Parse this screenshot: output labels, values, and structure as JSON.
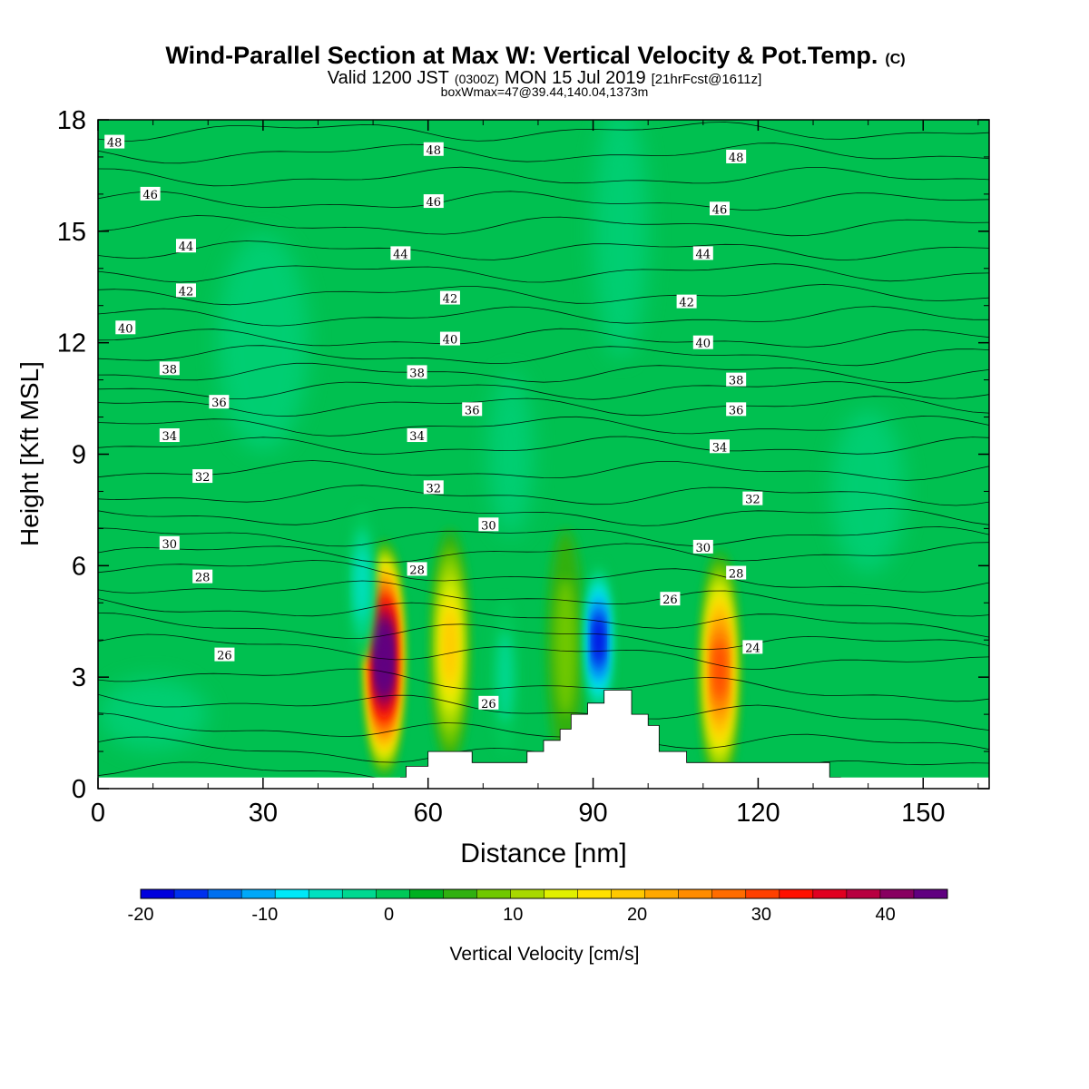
{
  "chart_data": {
    "type": "heatmap",
    "title": "Wind-Parallel Section at Max W: Vertical Velocity & Pot.Temp.",
    "title_mark": "(C)",
    "subtitle_parts": {
      "valid": "Valid 1200 JST",
      "utc": "(0300Z)",
      "date": "MON 15 Jul 2019",
      "fcst": "[21hrFcst@1611z]"
    },
    "subtitle2": "boxWmax=47@39.44,140.04,1373m",
    "xlabel": "Distance [nm]",
    "ylabel": "Height [Kft MSL]",
    "xlim": [
      0,
      162
    ],
    "ylim": [
      0,
      18
    ],
    "xticks": [
      0,
      30,
      60,
      90,
      120,
      150
    ],
    "yticks": [
      0,
      3,
      6,
      9,
      12,
      15,
      18
    ],
    "colorbar": {
      "label": "Vertical Velocity [cm/s]",
      "ticks": [
        -20,
        -10,
        0,
        10,
        20,
        30,
        40
      ],
      "range": [
        -20,
        45
      ],
      "step": 2.5,
      "colors": [
        "#0000dd",
        "#0030ee",
        "#0070f0",
        "#00a8f8",
        "#00e8f8",
        "#00e0c0",
        "#00d890",
        "#00c858",
        "#00b020",
        "#30b010",
        "#70c800",
        "#a8d800",
        "#e0f000",
        "#ffe000",
        "#ffc800",
        "#ffa800",
        "#ff8c00",
        "#ff6c00",
        "#ff4000",
        "#ff1000",
        "#e00020",
        "#b80040",
        "#880060",
        "#600080"
      ]
    },
    "theta_contours": [
      {
        "value": 24,
        "height": 3.8
      },
      {
        "value": 26,
        "height": 4.8
      },
      {
        "value": 28,
        "height": 5.9
      },
      {
        "value": 30,
        "height": 6.8
      },
      {
        "value": 32,
        "height": 7.9
      },
      {
        "value": 34,
        "height": 9.2
      },
      {
        "value": 36,
        "height": 10.3
      },
      {
        "value": 38,
        "height": 11.2
      },
      {
        "value": 40,
        "height": 12.1
      },
      {
        "value": 42,
        "height": 13.3
      },
      {
        "value": 44,
        "height": 14.5
      },
      {
        "value": 46,
        "height": 15.8
      },
      {
        "value": 48,
        "height": 17.1
      }
    ],
    "contour_labels": [
      {
        "text": "48",
        "x": 3,
        "y": 17.4
      },
      {
        "text": "48",
        "x": 61,
        "y": 17.2
      },
      {
        "text": "48",
        "x": 116,
        "y": 17.0
      },
      {
        "text": "46",
        "x": 9.5,
        "y": 16.0
      },
      {
        "text": "46",
        "x": 61,
        "y": 15.8
      },
      {
        "text": "46",
        "x": 113,
        "y": 15.6
      },
      {
        "text": "44",
        "x": 16,
        "y": 14.6
      },
      {
        "text": "44",
        "x": 55,
        "y": 14.4
      },
      {
        "text": "44",
        "x": 110,
        "y": 14.4
      },
      {
        "text": "42",
        "x": 16,
        "y": 13.4
      },
      {
        "text": "42",
        "x": 64,
        "y": 13.2
      },
      {
        "text": "42",
        "x": 107,
        "y": 13.1
      },
      {
        "text": "40",
        "x": 5,
        "y": 12.4
      },
      {
        "text": "40",
        "x": 64,
        "y": 12.1
      },
      {
        "text": "40",
        "x": 110,
        "y": 12.0
      },
      {
        "text": "38",
        "x": 13,
        "y": 11.3
      },
      {
        "text": "38",
        "x": 58,
        "y": 11.2
      },
      {
        "text": "38",
        "x": 116,
        "y": 11.0
      },
      {
        "text": "36",
        "x": 22,
        "y": 10.4
      },
      {
        "text": "36",
        "x": 68,
        "y": 10.2
      },
      {
        "text": "36",
        "x": 116,
        "y": 10.2
      },
      {
        "text": "34",
        "x": 13,
        "y": 9.5
      },
      {
        "text": "34",
        "x": 58,
        "y": 9.5
      },
      {
        "text": "34",
        "x": 113,
        "y": 9.2
      },
      {
        "text": "32",
        "x": 19,
        "y": 8.4
      },
      {
        "text": "32",
        "x": 61,
        "y": 8.1
      },
      {
        "text": "32",
        "x": 119,
        "y": 7.8
      },
      {
        "text": "30",
        "x": 13,
        "y": 6.6
      },
      {
        "text": "30",
        "x": 71,
        "y": 7.1
      },
      {
        "text": "30",
        "x": 110,
        "y": 6.5
      },
      {
        "text": "28",
        "x": 19,
        "y": 5.7
      },
      {
        "text": "28",
        "x": 58,
        "y": 5.9
      },
      {
        "text": "28",
        "x": 116,
        "y": 5.8
      },
      {
        "text": "26",
        "x": 23,
        "y": 3.6
      },
      {
        "text": "26",
        "x": 71,
        "y": 2.3
      },
      {
        "text": "26",
        "x": 104,
        "y": 5.1
      },
      {
        "text": "24",
        "x": 119,
        "y": 3.8
      }
    ],
    "updraft_cores": [
      {
        "x": 52,
        "y": 3.5,
        "peak": 45
      },
      {
        "x": 64,
        "y": 3.8,
        "peak": 14
      },
      {
        "x": 113,
        "y": 3.2,
        "peak": 26
      },
      {
        "x": 85,
        "y": 3.8,
        "peak": 6
      }
    ],
    "downdraft_cores": [
      {
        "x": 91,
        "y": 4.0,
        "peak": -20
      },
      {
        "x": 74,
        "y": 3.0,
        "peak": -6
      },
      {
        "x": 48,
        "y": 5.5,
        "peak": -8
      }
    ],
    "terrain": [
      [
        55,
        0.3
      ],
      [
        56,
        0.3
      ],
      [
        56,
        0.6
      ],
      [
        60,
        0.6
      ],
      [
        60,
        1.0
      ],
      [
        68,
        1.0
      ],
      [
        68,
        0.7
      ],
      [
        78,
        0.7
      ],
      [
        78,
        1.0
      ],
      [
        81,
        1.0
      ],
      [
        81,
        1.3
      ],
      [
        84,
        1.3
      ],
      [
        84,
        1.6
      ],
      [
        86,
        1.6
      ],
      [
        86,
        2.0
      ],
      [
        89,
        2.0
      ],
      [
        89,
        2.3
      ],
      [
        92,
        2.3
      ],
      [
        92,
        2.65
      ],
      [
        97,
        2.65
      ],
      [
        97,
        2.0
      ],
      [
        100,
        2.0
      ],
      [
        100,
        1.7
      ],
      [
        102,
        1.7
      ],
      [
        102,
        1.0
      ],
      [
        107,
        1.0
      ],
      [
        107,
        0.7
      ],
      [
        133,
        0.7
      ],
      [
        133,
        0.3
      ],
      [
        135,
        0.3
      ]
    ]
  }
}
